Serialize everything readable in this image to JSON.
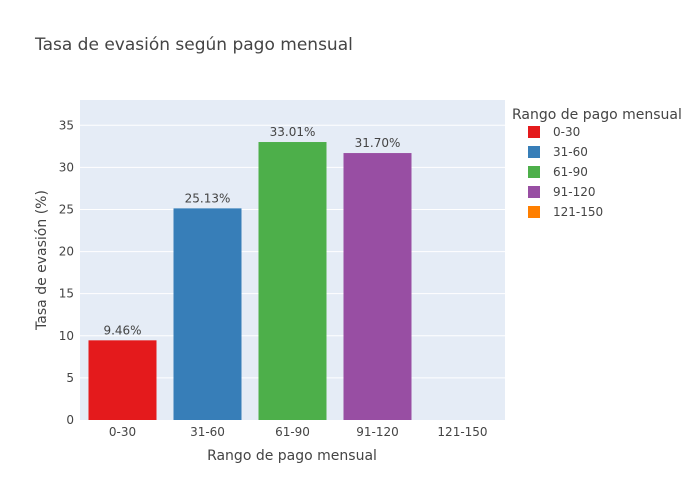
{
  "chart_data": {
    "type": "bar",
    "title": "Tasa de evasión según pago mensual",
    "xlabel": "Rango de pago mensual",
    "ylabel": "Tasa de evasión (%)",
    "categories": [
      "0-30",
      "31-60",
      "61-90",
      "91-120",
      "121-150"
    ],
    "values": [
      9.46,
      25.13,
      33.01,
      31.7,
      0
    ],
    "data_labels": [
      "9.46%",
      "25.13%",
      "33.01%",
      "31.70%",
      ""
    ],
    "ylim": [
      0,
      38
    ],
    "yticks": [
      0,
      5,
      10,
      15,
      20,
      25,
      30,
      35
    ],
    "grid": true,
    "legend": {
      "title": "Rango de pago mensual",
      "placement": "right",
      "entries": [
        "0-30",
        "31-60",
        "61-90",
        "91-120",
        "121-150"
      ]
    },
    "colors": [
      "#e41a1c",
      "#377eb8",
      "#4daf4a",
      "#984ea3",
      "#ff7f00"
    ],
    "plot_background": "#e5ecf6",
    "grid_color": "#ffffff"
  }
}
